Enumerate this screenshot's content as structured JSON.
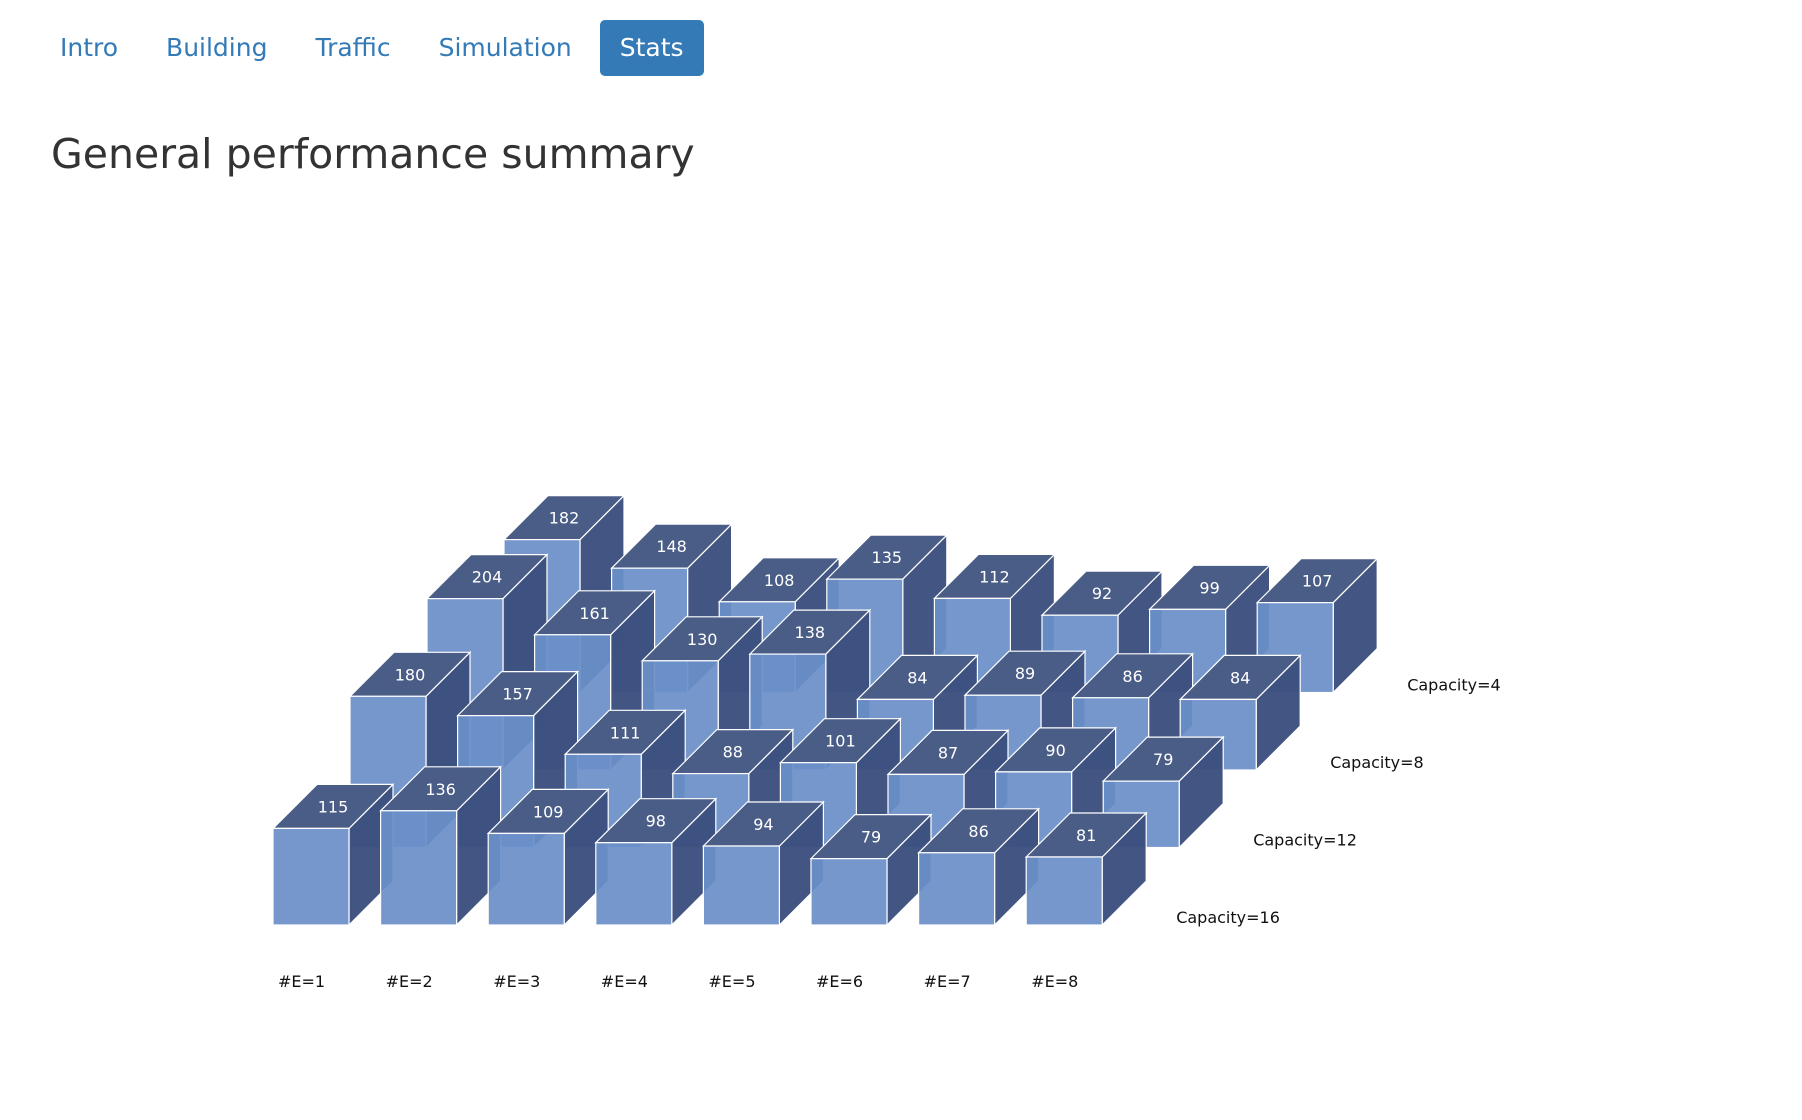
{
  "nav": {
    "tabs": [
      {
        "label": "Intro",
        "active": false
      },
      {
        "label": "Building",
        "active": false
      },
      {
        "label": "Traffic",
        "active": false
      },
      {
        "label": "Simulation",
        "active": false
      },
      {
        "label": "Stats",
        "active": true
      }
    ]
  },
  "page": {
    "title": "General performance summary"
  },
  "colors": {
    "accent": "#337ab7",
    "bar_front": "#6a8fc8",
    "bar_top": "#4a5d86",
    "bar_side": "#3b4f7e",
    "bar_edge": "#ffffff"
  },
  "chart_data": {
    "type": "bar3d",
    "categories": [
      "#E=1",
      "#E=2",
      "#E=3",
      "#E=4",
      "#E=5",
      "#E=6",
      "#E=7",
      "#E=8"
    ],
    "series": [
      {
        "name": "Capacity=4",
        "values": [
          182,
          148,
          108,
          135,
          112,
          92,
          99,
          107
        ]
      },
      {
        "name": "Capacity=8",
        "values": [
          204,
          161,
          130,
          138,
          84,
          89,
          86,
          84
        ]
      },
      {
        "name": "Capacity=12",
        "values": [
          180,
          157,
          111,
          88,
          101,
          87,
          90,
          79
        ]
      },
      {
        "name": "Capacity=16",
        "values": [
          115,
          136,
          109,
          98,
          94,
          79,
          86,
          81
        ]
      }
    ]
  }
}
